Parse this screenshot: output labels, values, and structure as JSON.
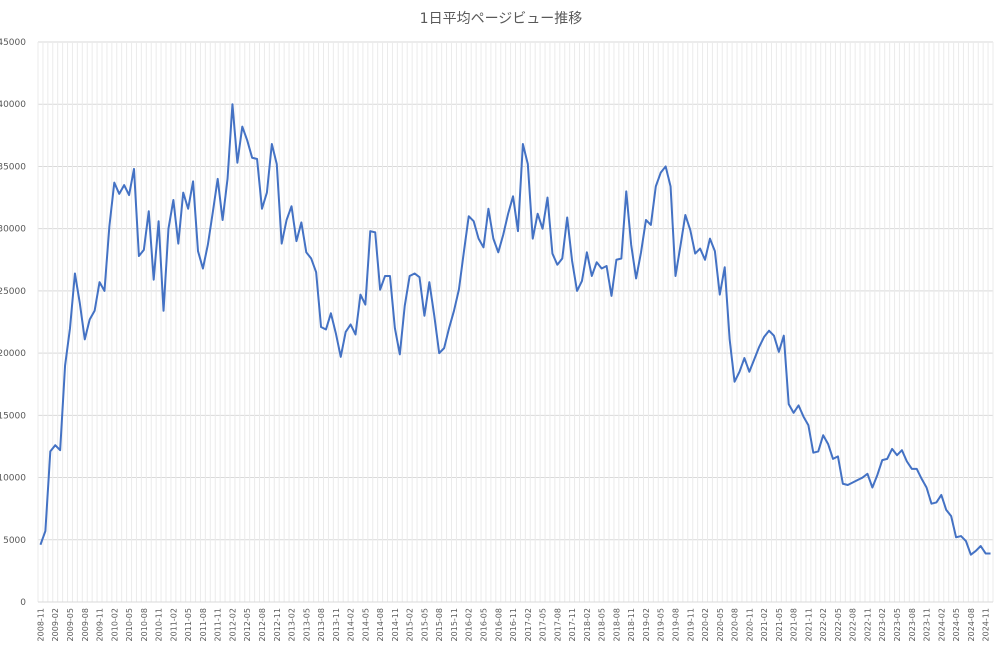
{
  "chart_data": {
    "type": "line",
    "title": "1日平均ページビュー推移",
    "xlabel": "",
    "ylabel": "",
    "ylim": [
      0,
      45000
    ],
    "yticks": [
      0,
      5000,
      10000,
      15000,
      20000,
      25000,
      30000,
      35000,
      40000,
      45000
    ],
    "grid": "vertical-per-month",
    "legend": "none",
    "line_color": "#4472c4",
    "x": [
      "2008-11",
      "2008-12",
      "2009-01",
      "2009-02",
      "2009-03",
      "2009-04",
      "2009-05",
      "2009-06",
      "2009-07",
      "2009-08",
      "2009-09",
      "2009-10",
      "2009-11",
      "2009-12",
      "2010-01",
      "2010-02",
      "2010-03",
      "2010-04",
      "2010-05",
      "2010-06",
      "2010-07",
      "2010-08",
      "2010-09",
      "2010-10",
      "2010-11",
      "2010-12",
      "2011-01",
      "2011-02",
      "2011-03",
      "2011-04",
      "2011-05",
      "2011-06",
      "2011-07",
      "2011-08",
      "2011-09",
      "2011-10",
      "2011-11",
      "2011-12",
      "2012-01",
      "2012-02",
      "2012-03",
      "2012-04",
      "2012-05",
      "2012-06",
      "2012-07",
      "2012-08",
      "2012-09",
      "2012-10",
      "2012-11",
      "2012-12",
      "2013-01",
      "2013-02",
      "2013-03",
      "2013-04",
      "2013-05",
      "2013-06",
      "2013-07",
      "2013-08",
      "2013-09",
      "2013-10",
      "2013-11",
      "2013-12",
      "2014-01",
      "2014-02",
      "2014-03",
      "2014-04",
      "2014-05",
      "2014-06",
      "2014-07",
      "2014-08",
      "2014-09",
      "2014-10",
      "2014-11",
      "2014-12",
      "2015-01",
      "2015-02",
      "2015-03",
      "2015-04",
      "2015-05",
      "2015-06",
      "2015-07",
      "2015-08",
      "2015-09",
      "2015-10",
      "2015-11",
      "2015-12",
      "2016-01",
      "2016-02",
      "2016-03",
      "2016-04",
      "2016-05",
      "2016-06",
      "2016-07",
      "2016-08",
      "2016-09",
      "2016-10",
      "2016-11",
      "2016-12",
      "2017-01",
      "2017-02",
      "2017-03",
      "2017-04",
      "2017-05",
      "2017-06",
      "2017-07",
      "2017-08",
      "2017-09",
      "2017-10",
      "2017-11",
      "2017-12",
      "2018-01",
      "2018-02",
      "2018-03",
      "2018-04",
      "2018-05",
      "2018-06",
      "2018-07",
      "2018-08",
      "2018-09",
      "2018-10",
      "2018-11",
      "2018-12",
      "2019-01",
      "2019-02",
      "2019-03",
      "2019-04",
      "2019-05",
      "2019-06",
      "2019-07",
      "2019-08",
      "2019-09",
      "2019-10",
      "2019-11",
      "2019-12",
      "2020-01",
      "2020-02",
      "2020-03",
      "2020-04",
      "2020-05",
      "2020-06",
      "2020-07",
      "2020-08",
      "2020-09",
      "2020-10",
      "2020-11",
      "2020-12",
      "2021-01",
      "2021-02",
      "2021-03",
      "2021-04",
      "2021-05",
      "2021-06",
      "2021-07",
      "2021-08",
      "2021-09",
      "2021-10",
      "2021-11",
      "2021-12",
      "2022-01",
      "2022-02",
      "2022-03",
      "2022-04",
      "2022-05",
      "2022-06",
      "2022-07",
      "2022-08",
      "2022-09",
      "2022-10",
      "2022-11",
      "2022-12",
      "2023-01",
      "2023-02",
      "2023-03",
      "2023-04",
      "2023-05",
      "2023-06",
      "2023-07",
      "2023-08",
      "2023-09",
      "2023-10",
      "2023-11",
      "2023-12",
      "2024-01",
      "2024-02",
      "2024-03",
      "2024-04",
      "2024-05",
      "2024-06",
      "2024-07",
      "2024-08",
      "2024-09",
      "2024-10",
      "2024-11",
      "2024-12"
    ],
    "x_tick_labels": [
      "2008-11",
      "2009-02",
      "2009-05",
      "2009-08",
      "2009-11",
      "2010-02",
      "2010-05",
      "2010-08",
      "2010-11",
      "2011-02",
      "2011-05",
      "2011-08",
      "2011-11",
      "2012-02",
      "2012-05",
      "2012-08",
      "2012-11",
      "2013-02",
      "2013-05",
      "2013-08",
      "2013-11",
      "2014-02",
      "2014-05",
      "2014-08",
      "2014-11",
      "2015-02",
      "2015-05",
      "2015-08",
      "2015-11",
      "2016-02",
      "2016-05",
      "2016-08",
      "2016-11",
      "2017-02",
      "2017-05",
      "2017-08",
      "2017-11",
      "2018-02",
      "2018-05",
      "2018-08",
      "2018-11",
      "2019-02",
      "2019-05",
      "2019-08",
      "2019-11",
      "2020-02",
      "2020-05",
      "2020-08",
      "2020-11",
      "2021-02",
      "2021-05",
      "2021-08",
      "2021-11",
      "2022-02",
      "2022-05",
      "2022-08",
      "2022-11",
      "2023-02",
      "2023-05",
      "2023-08",
      "2023-11",
      "2024-02",
      "2024-05",
      "2024-08",
      "2024-11"
    ],
    "y": [
      4600,
      5700,
      12100,
      12600,
      12200,
      19000,
      22000,
      26400,
      24000,
      21100,
      22700,
      23400,
      25700,
      25000,
      30200,
      33700,
      32800,
      33500,
      32700,
      34800,
      27800,
      28300,
      31400,
      25900,
      30600,
      23400,
      30000,
      32300,
      28800,
      32900,
      31600,
      33800,
      28200,
      26800,
      28700,
      31300,
      34000,
      30700,
      34000,
      40000,
      35300,
      38200,
      37100,
      35700,
      35600,
      31600,
      32900,
      36800,
      35200,
      28800,
      30700,
      31800,
      29000,
      30500,
      28100,
      27600,
      26500,
      22100,
      21900,
      23200,
      21600,
      19700,
      21700,
      22300,
      21500,
      24700,
      23900,
      29800,
      29700,
      25100,
      26200,
      26200,
      22000,
      19900,
      23800,
      26200,
      26400,
      26100,
      23000,
      25700,
      23000,
      20000,
      20400,
      22000,
      23400,
      25100,
      28100,
      31000,
      30600,
      29200,
      28500,
      31600,
      29200,
      28100,
      29500,
      31200,
      32600,
      29800,
      36800,
      35200,
      29200,
      31200,
      30000,
      32500,
      28000,
      27100,
      27600,
      30900,
      27400,
      25000,
      25800,
      28100,
      26200,
      27300,
      26800,
      27000,
      24600,
      27500,
      27600,
      33000,
      28700,
      26000,
      28100,
      30700,
      30300,
      33400,
      34500,
      35000,
      33400,
      26200,
      28600,
      31100,
      29900,
      28000,
      28400,
      27500,
      29200,
      28200,
      24700,
      26900,
      21100,
      17700,
      18500,
      19600,
      18500,
      19500,
      20500,
      21300,
      21800,
      21400,
      20100,
      21400,
      15900,
      15200,
      15800,
      14900,
      14200,
      12000,
      12100,
      13400,
      12700,
      11500,
      11700,
      9500,
      9400,
      9600,
      9800,
      10000,
      10300,
      9200,
      10200,
      11400,
      11500,
      12300,
      11800,
      12200,
      11300,
      10700,
      10700,
      9900,
      9200,
      7900,
      8000,
      8600,
      7400,
      6900,
      5200,
      5300,
      4900,
      3800,
      4100,
      4500,
      3900,
      3900
    ]
  }
}
